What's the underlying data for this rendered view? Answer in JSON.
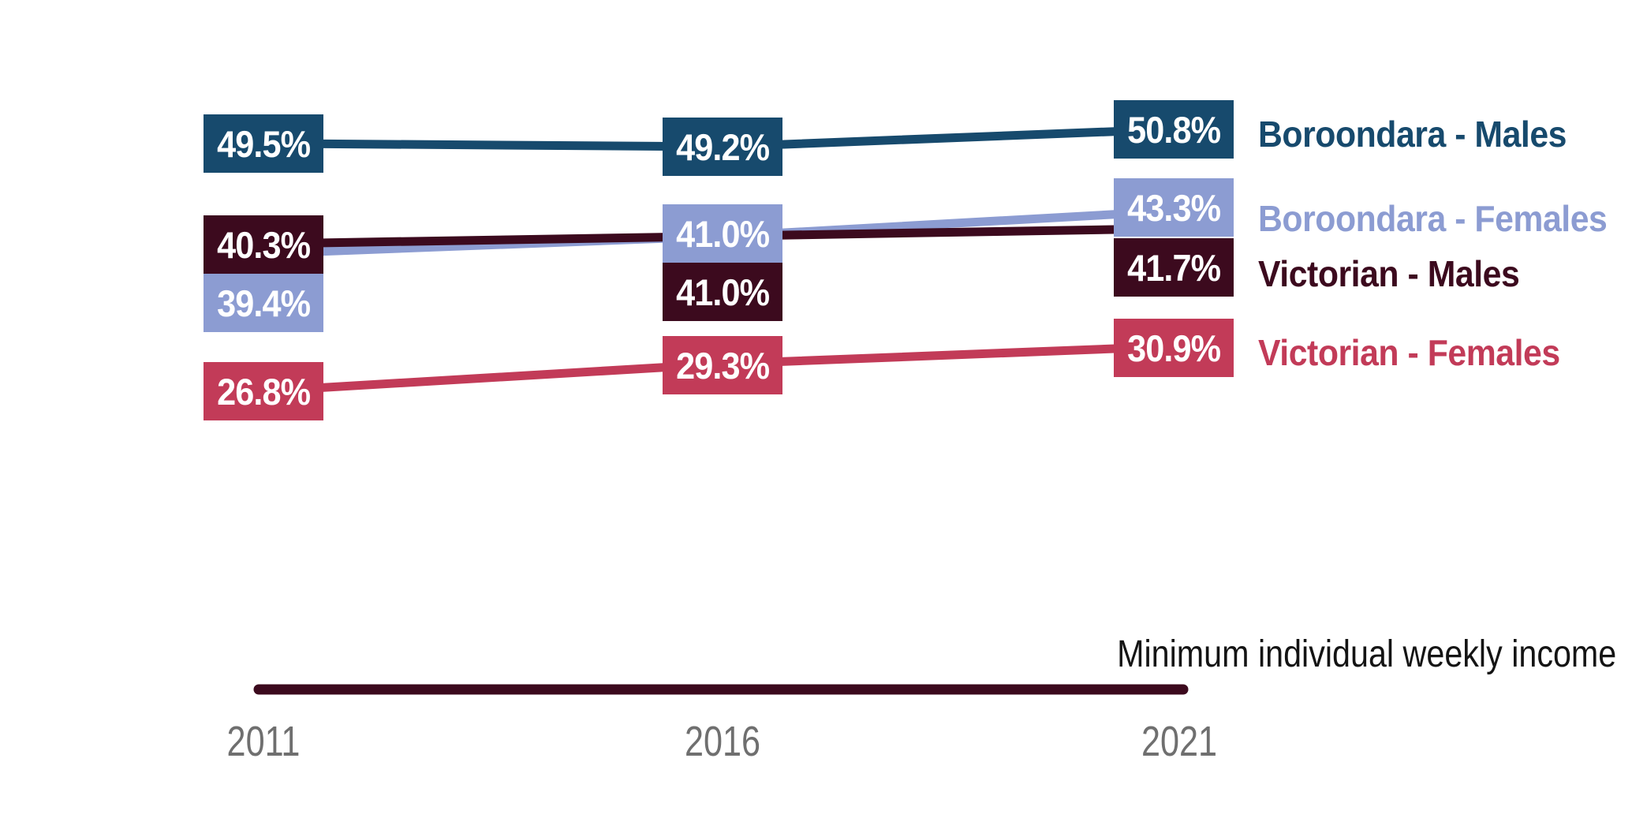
{
  "chart_data": {
    "type": "line",
    "title": "",
    "x_axis_label": "Minimum individual weekly income",
    "categories": [
      "2011",
      "2016",
      "2021"
    ],
    "series": [
      {
        "name": "Boroondara - Males",
        "color": "#174A6D",
        "values": [
          49.5,
          49.2,
          50.8
        ]
      },
      {
        "name": "Boroondara - Females",
        "color": "#8C9CD2",
        "values": [
          39.4,
          41.0,
          43.3
        ]
      },
      {
        "name": "Victorian - Males",
        "color": "#3C0A1E",
        "values": [
          40.3,
          41.0,
          41.7
        ]
      },
      {
        "name": "Victorian - Females",
        "color": "#C23B58",
        "values": [
          26.8,
          29.3,
          30.9
        ]
      }
    ],
    "value_label_format": "one_decimal_percent",
    "value_label_text_color": "#ffffff",
    "legend_position": "right",
    "grid": false,
    "axis_line_color": "#3C0A1E",
    "tick_label_color": "#6F6F6F"
  }
}
